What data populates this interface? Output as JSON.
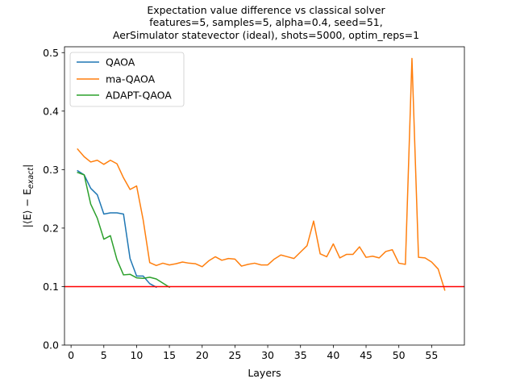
{
  "chart_data": {
    "type": "line",
    "title_lines": [
      "Expectation value difference vs classical solver",
      "features=5, samples=5, alpha=0.4, seed=51,",
      "AerSimulator statevector (ideal), shots=5000, optim_reps=1"
    ],
    "xlabel": "Layers",
    "ylabel": "|⟨E⟩ − E_exact|",
    "ylabel_main": "|⟨E⟩ − E",
    "ylabel_sub": "exact",
    "ylabel_end": "|",
    "xlim": [
      -1,
      60
    ],
    "ylim": [
      0.0,
      0.51
    ],
    "xticks": [
      0,
      5,
      10,
      15,
      20,
      25,
      30,
      35,
      40,
      45,
      50,
      55
    ],
    "xtick_labels": [
      "0",
      "5",
      "10",
      "15",
      "20",
      "25",
      "30",
      "35",
      "40",
      "45",
      "50",
      "55"
    ],
    "yticks": [
      0.0,
      0.1,
      0.2,
      0.3,
      0.4,
      0.5
    ],
    "ytick_labels": [
      "0.0",
      "0.1",
      "0.2",
      "0.3",
      "0.4",
      "0.5"
    ],
    "grid": false,
    "legend_placement": "top-left",
    "threshold": {
      "y": 0.1,
      "color": "#ff0000"
    },
    "series": [
      {
        "name": "QAOA",
        "color": "#1f77b4",
        "x": [
          1,
          2,
          3,
          4,
          5,
          6,
          7,
          8,
          9,
          10,
          11,
          12,
          13
        ],
        "y": [
          0.298,
          0.291,
          0.268,
          0.257,
          0.224,
          0.226,
          0.226,
          0.224,
          0.148,
          0.118,
          0.118,
          0.105,
          0.099
        ]
      },
      {
        "name": "ma-QAOA",
        "color": "#ff7f0e",
        "x": [
          1,
          2,
          3,
          4,
          5,
          6,
          7,
          8,
          9,
          10,
          11,
          12,
          13,
          14,
          15,
          16,
          17,
          18,
          19,
          20,
          21,
          22,
          23,
          24,
          25,
          26,
          27,
          28,
          29,
          30,
          31,
          32,
          33,
          34,
          35,
          36,
          37,
          38,
          39,
          40,
          41,
          42,
          43,
          44,
          45,
          46,
          47,
          48,
          49,
          50,
          51,
          52,
          53,
          54,
          55,
          56,
          57
        ],
        "y": [
          0.335,
          0.322,
          0.313,
          0.316,
          0.309,
          0.316,
          0.31,
          0.286,
          0.266,
          0.272,
          0.214,
          0.141,
          0.136,
          0.14,
          0.137,
          0.139,
          0.142,
          0.14,
          0.139,
          0.134,
          0.144,
          0.151,
          0.145,
          0.148,
          0.147,
          0.135,
          0.138,
          0.14,
          0.137,
          0.137,
          0.147,
          0.154,
          0.151,
          0.148,
          0.159,
          0.17,
          0.212,
          0.156,
          0.151,
          0.173,
          0.149,
          0.155,
          0.155,
          0.168,
          0.15,
          0.152,
          0.149,
          0.16,
          0.163,
          0.14,
          0.138,
          0.49,
          0.15,
          0.149,
          0.142,
          0.13,
          0.094
        ]
      },
      {
        "name": "ADAPT-QAOA",
        "color": "#2ca02c",
        "x": [
          1,
          2,
          3,
          4,
          5,
          6,
          7,
          8,
          9,
          10,
          11,
          12,
          13,
          14,
          15
        ],
        "y": [
          0.295,
          0.291,
          0.241,
          0.217,
          0.181,
          0.187,
          0.146,
          0.12,
          0.121,
          0.115,
          0.114,
          0.116,
          0.113,
          0.106,
          0.099
        ]
      }
    ]
  }
}
